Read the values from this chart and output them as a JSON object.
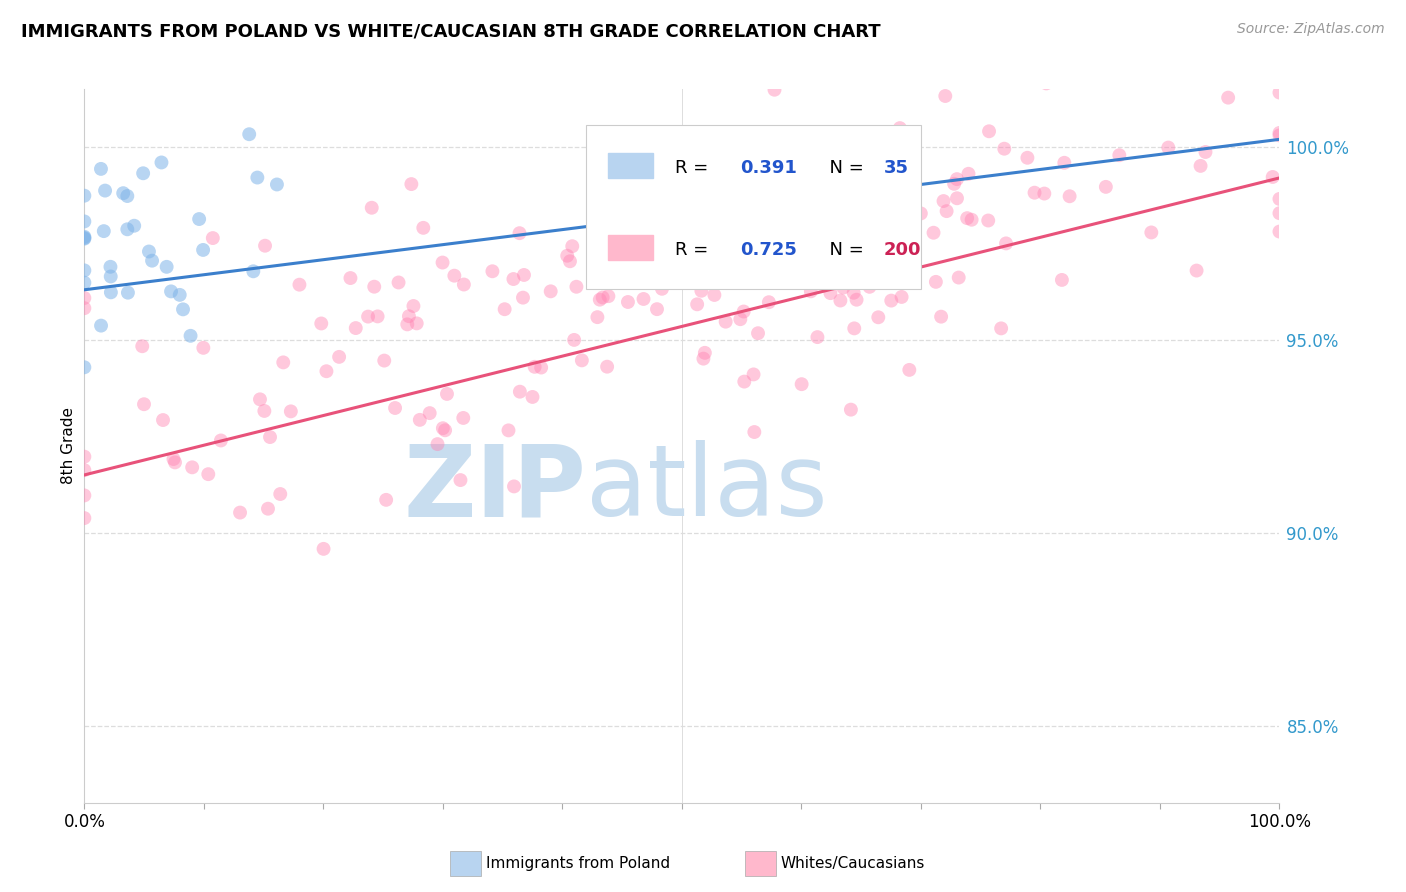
{
  "title": "IMMIGRANTS FROM POLAND VS WHITE/CAUCASIAN 8TH GRADE CORRELATION CHART",
  "source": "Source: ZipAtlas.com",
  "ylabel": "8th Grade",
  "right_yticks": [
    85.0,
    90.0,
    95.0,
    100.0
  ],
  "right_ytick_labels": [
    "85.0%",
    "90.0%",
    "95.0%",
    "100.0%"
  ],
  "blue_color": "#7EB3E8",
  "pink_color": "#FF85B3",
  "blue_line_color": "#3B7FCC",
  "pink_line_color": "#E8527A",
  "blue_legend_fill": "#B8D4F0",
  "pink_legend_fill": "#FFB8CC",
  "r_color": "#1A1A2E",
  "n_color": "#1A1A2E",
  "value_color": "#2255CC",
  "pink_value_color": "#CC2255",
  "watermark_zip_color": "#C8DDEF",
  "watermark_atlas_color": "#C8DDEF",
  "background_color": "#FFFFFF",
  "grid_color": "#DDDDDD",
  "tick_label_color": "#3399CC",
  "seed": 42,
  "n_blue": 35,
  "n_pink": 200,
  "r_blue": 0.391,
  "r_pink": 0.725,
  "xmin": 0.0,
  "xmax": 1.0,
  "ymin": 83.0,
  "ymax": 101.5,
  "blue_line_x0": 0.0,
  "blue_line_y0": 96.3,
  "blue_line_x1": 1.0,
  "blue_line_y1": 100.2,
  "pink_line_x0": 0.0,
  "pink_line_y0": 91.5,
  "pink_line_x1": 1.0,
  "pink_line_y1": 99.2
}
